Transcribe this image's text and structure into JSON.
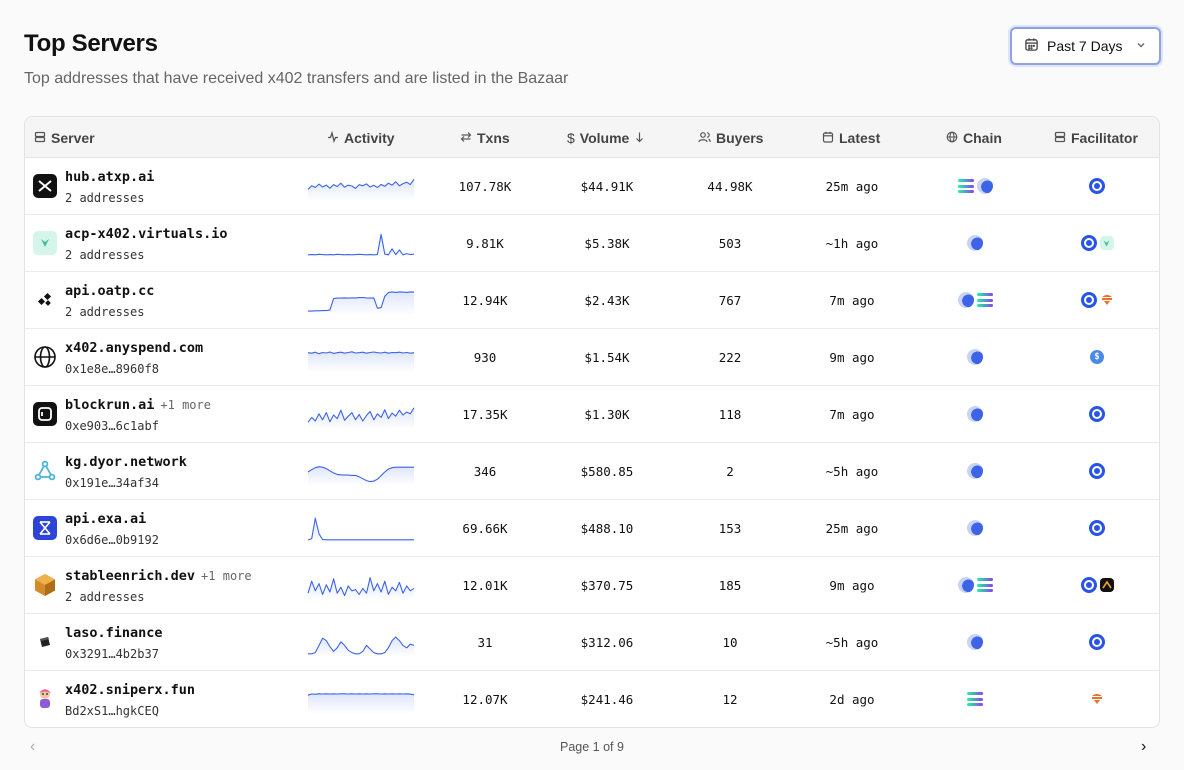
{
  "header": {
    "title": "Top Servers",
    "subtitle": "Top addresses that have received x402 transfers and are listed in the Bazaar"
  },
  "range_selector": {
    "label": "Past 7 Days"
  },
  "columns": {
    "server": "Server",
    "activity": "Activity",
    "txns": "Txns",
    "volume": "Volume",
    "buyers": "Buyers",
    "latest": "Latest",
    "chain": "Chain",
    "facilitator": "Facilitator"
  },
  "rows": [
    {
      "name": "hub.atxp.ai",
      "more": "",
      "sub": "2 addresses",
      "txns": "107.78K",
      "volume": "$44.91K",
      "buyers": "44.98K",
      "latest": "25m ago",
      "chains": [
        "solana",
        "base"
      ],
      "facilitators": [
        "coinbase"
      ],
      "logo": "atxp-logo",
      "activity": [
        40,
        55,
        48,
        62,
        50,
        58,
        45,
        60,
        52,
        66,
        49,
        58,
        54,
        44,
        60,
        55,
        63,
        50,
        57,
        48,
        61,
        53,
        66,
        58,
        72,
        55,
        64,
        70,
        60,
        82
      ]
    },
    {
      "name": "acp-x402.virtuals.io",
      "more": "",
      "sub": "2 addresses",
      "txns": "9.81K",
      "volume": "$5.38K",
      "buyers": "503",
      "latest": "~1h ago",
      "chains": [
        "base"
      ],
      "facilitators": [
        "coinbase",
        "virtuals"
      ],
      "logo": "virtuals-logo",
      "activity": [
        5,
        6,
        5,
        7,
        6,
        5,
        6,
        5,
        7,
        6,
        5,
        6,
        5,
        6,
        7,
        6,
        5,
        6,
        5,
        6,
        90,
        8,
        5,
        30,
        6,
        25,
        5,
        10,
        6,
        8
      ]
    },
    {
      "name": "api.oatp.cc",
      "more": "",
      "sub": "2 addresses",
      "txns": "12.94K",
      "volume": "$2.43K",
      "buyers": "767",
      "latest": "7m ago",
      "chains": [
        "base",
        "solana"
      ],
      "facilitators": [
        "coinbase",
        "payai"
      ],
      "logo": "oatp-logo",
      "activity": [
        8,
        8,
        9,
        9,
        10,
        10,
        12,
        60,
        62,
        62,
        63,
        62,
        63,
        63,
        64,
        64,
        63,
        62,
        63,
        20,
        22,
        70,
        85,
        88,
        86,
        88,
        87,
        86,
        88,
        87
      ]
    },
    {
      "name": "x402.anyspend.com",
      "more": "",
      "sub": "0x1e8e…8960f8",
      "txns": "930",
      "volume": "$1.54K",
      "buyers": "222",
      "latest": "9m ago",
      "chains": [
        "base"
      ],
      "facilitators": [
        "anyspend"
      ],
      "logo": "globe-logo",
      "activity": [
        72,
        70,
        74,
        68,
        73,
        71,
        75,
        69,
        72,
        74,
        70,
        73,
        76,
        71,
        72,
        74,
        70,
        73,
        75,
        72,
        71,
        74,
        70,
        73,
        72,
        74,
        71,
        73,
        70,
        72
      ]
    },
    {
      "name": "blockrun.ai",
      "more": "+1 more",
      "sub": "0xe903…6c1abf",
      "txns": "17.35K",
      "volume": "$1.30K",
      "buyers": "118",
      "latest": "7m ago",
      "chains": [
        "base"
      ],
      "facilitators": [
        "coinbase"
      ],
      "logo": "blockrun-logo",
      "activity": [
        20,
        40,
        25,
        55,
        30,
        60,
        22,
        50,
        35,
        70,
        28,
        45,
        60,
        30,
        52,
        25,
        48,
        65,
        30,
        55,
        40,
        72,
        35,
        58,
        45,
        70,
        50,
        62,
        55,
        80
      ]
    },
    {
      "name": "kg.dyor.network",
      "more": "",
      "sub": "0x191e…34af34",
      "txns": "346",
      "volume": "$580.85",
      "buyers": "2",
      "latest": "~5h ago",
      "chains": [
        "base"
      ],
      "facilitators": [
        "coinbase"
      ],
      "logo": "dyor-logo",
      "activity": [
        50,
        60,
        68,
        72,
        70,
        64,
        55,
        46,
        40,
        38,
        38,
        37,
        36,
        36,
        30,
        22,
        14,
        10,
        12,
        20,
        35,
        50,
        62,
        68,
        70,
        70,
        70,
        70,
        70,
        70
      ]
    },
    {
      "name": "api.exa.ai",
      "more": "",
      "sub": "0x6d6e…0b9192",
      "txns": "69.66K",
      "volume": "$488.10",
      "buyers": "153",
      "latest": "25m ago",
      "chains": [
        "base"
      ],
      "facilitators": [
        "coinbase"
      ],
      "logo": "exa-logo",
      "activity": [
        4,
        10,
        95,
        30,
        6,
        5,
        5,
        5,
        5,
        5,
        5,
        5,
        5,
        5,
        5,
        5,
        5,
        5,
        5,
        5,
        5,
        5,
        5,
        5,
        5,
        5,
        5,
        5,
        5,
        5
      ]
    },
    {
      "name": "stableenrich.dev",
      "more": "+1 more",
      "sub": "2 addresses",
      "txns": "12.01K",
      "volume": "$370.75",
      "buyers": "185",
      "latest": "9m ago",
      "chains": [
        "base",
        "solana"
      ],
      "facilitators": [
        "coinbase",
        "thirdweb"
      ],
      "logo": "stableenrich-logo",
      "activity": [
        20,
        70,
        30,
        60,
        15,
        55,
        25,
        80,
        20,
        45,
        10,
        50,
        30,
        35,
        15,
        40,
        20,
        85,
        30,
        60,
        25,
        70,
        15,
        45,
        30,
        65,
        20,
        50,
        30,
        40
      ]
    },
    {
      "name": "laso.finance",
      "more": "",
      "sub": "0x3291…4b2b37",
      "txns": "31",
      "volume": "$312.06",
      "buyers": "10",
      "latest": "~5h ago",
      "chains": [
        "base"
      ],
      "facilitators": [
        "coinbase"
      ],
      "logo": "laso-logo",
      "activity": [
        5,
        5,
        10,
        40,
        70,
        60,
        35,
        15,
        30,
        55,
        40,
        20,
        10,
        5,
        5,
        15,
        40,
        25,
        10,
        5,
        5,
        10,
        30,
        60,
        75,
        60,
        40,
        30,
        45,
        40
      ]
    },
    {
      "name": "x402.sniperx.fun",
      "more": "",
      "sub": "Bd2xS1…hgkCEQ",
      "txns": "12.07K",
      "volume": "$241.46",
      "buyers": "12",
      "latest": "2d ago",
      "chains": [
        "solana"
      ],
      "facilitators": [
        "payai"
      ],
      "logo": "sniperx-logo",
      "activity": [
        70,
        75,
        74,
        76,
        75,
        76,
        75,
        76,
        75,
        76,
        76,
        75,
        76,
        75,
        76,
        75,
        76,
        75,
        76,
        76,
        75,
        76,
        75,
        76,
        75,
        76,
        75,
        76,
        74,
        72
      ]
    }
  ],
  "pagination": {
    "text": "Page 1 of 9",
    "prev_icon": "chevron-left-icon",
    "next_icon": "chevron-right-icon"
  },
  "colors": {
    "accent": "#3d64e6",
    "spark_line": "#3d64e6",
    "spark_fill": "#dbe3fb"
  }
}
